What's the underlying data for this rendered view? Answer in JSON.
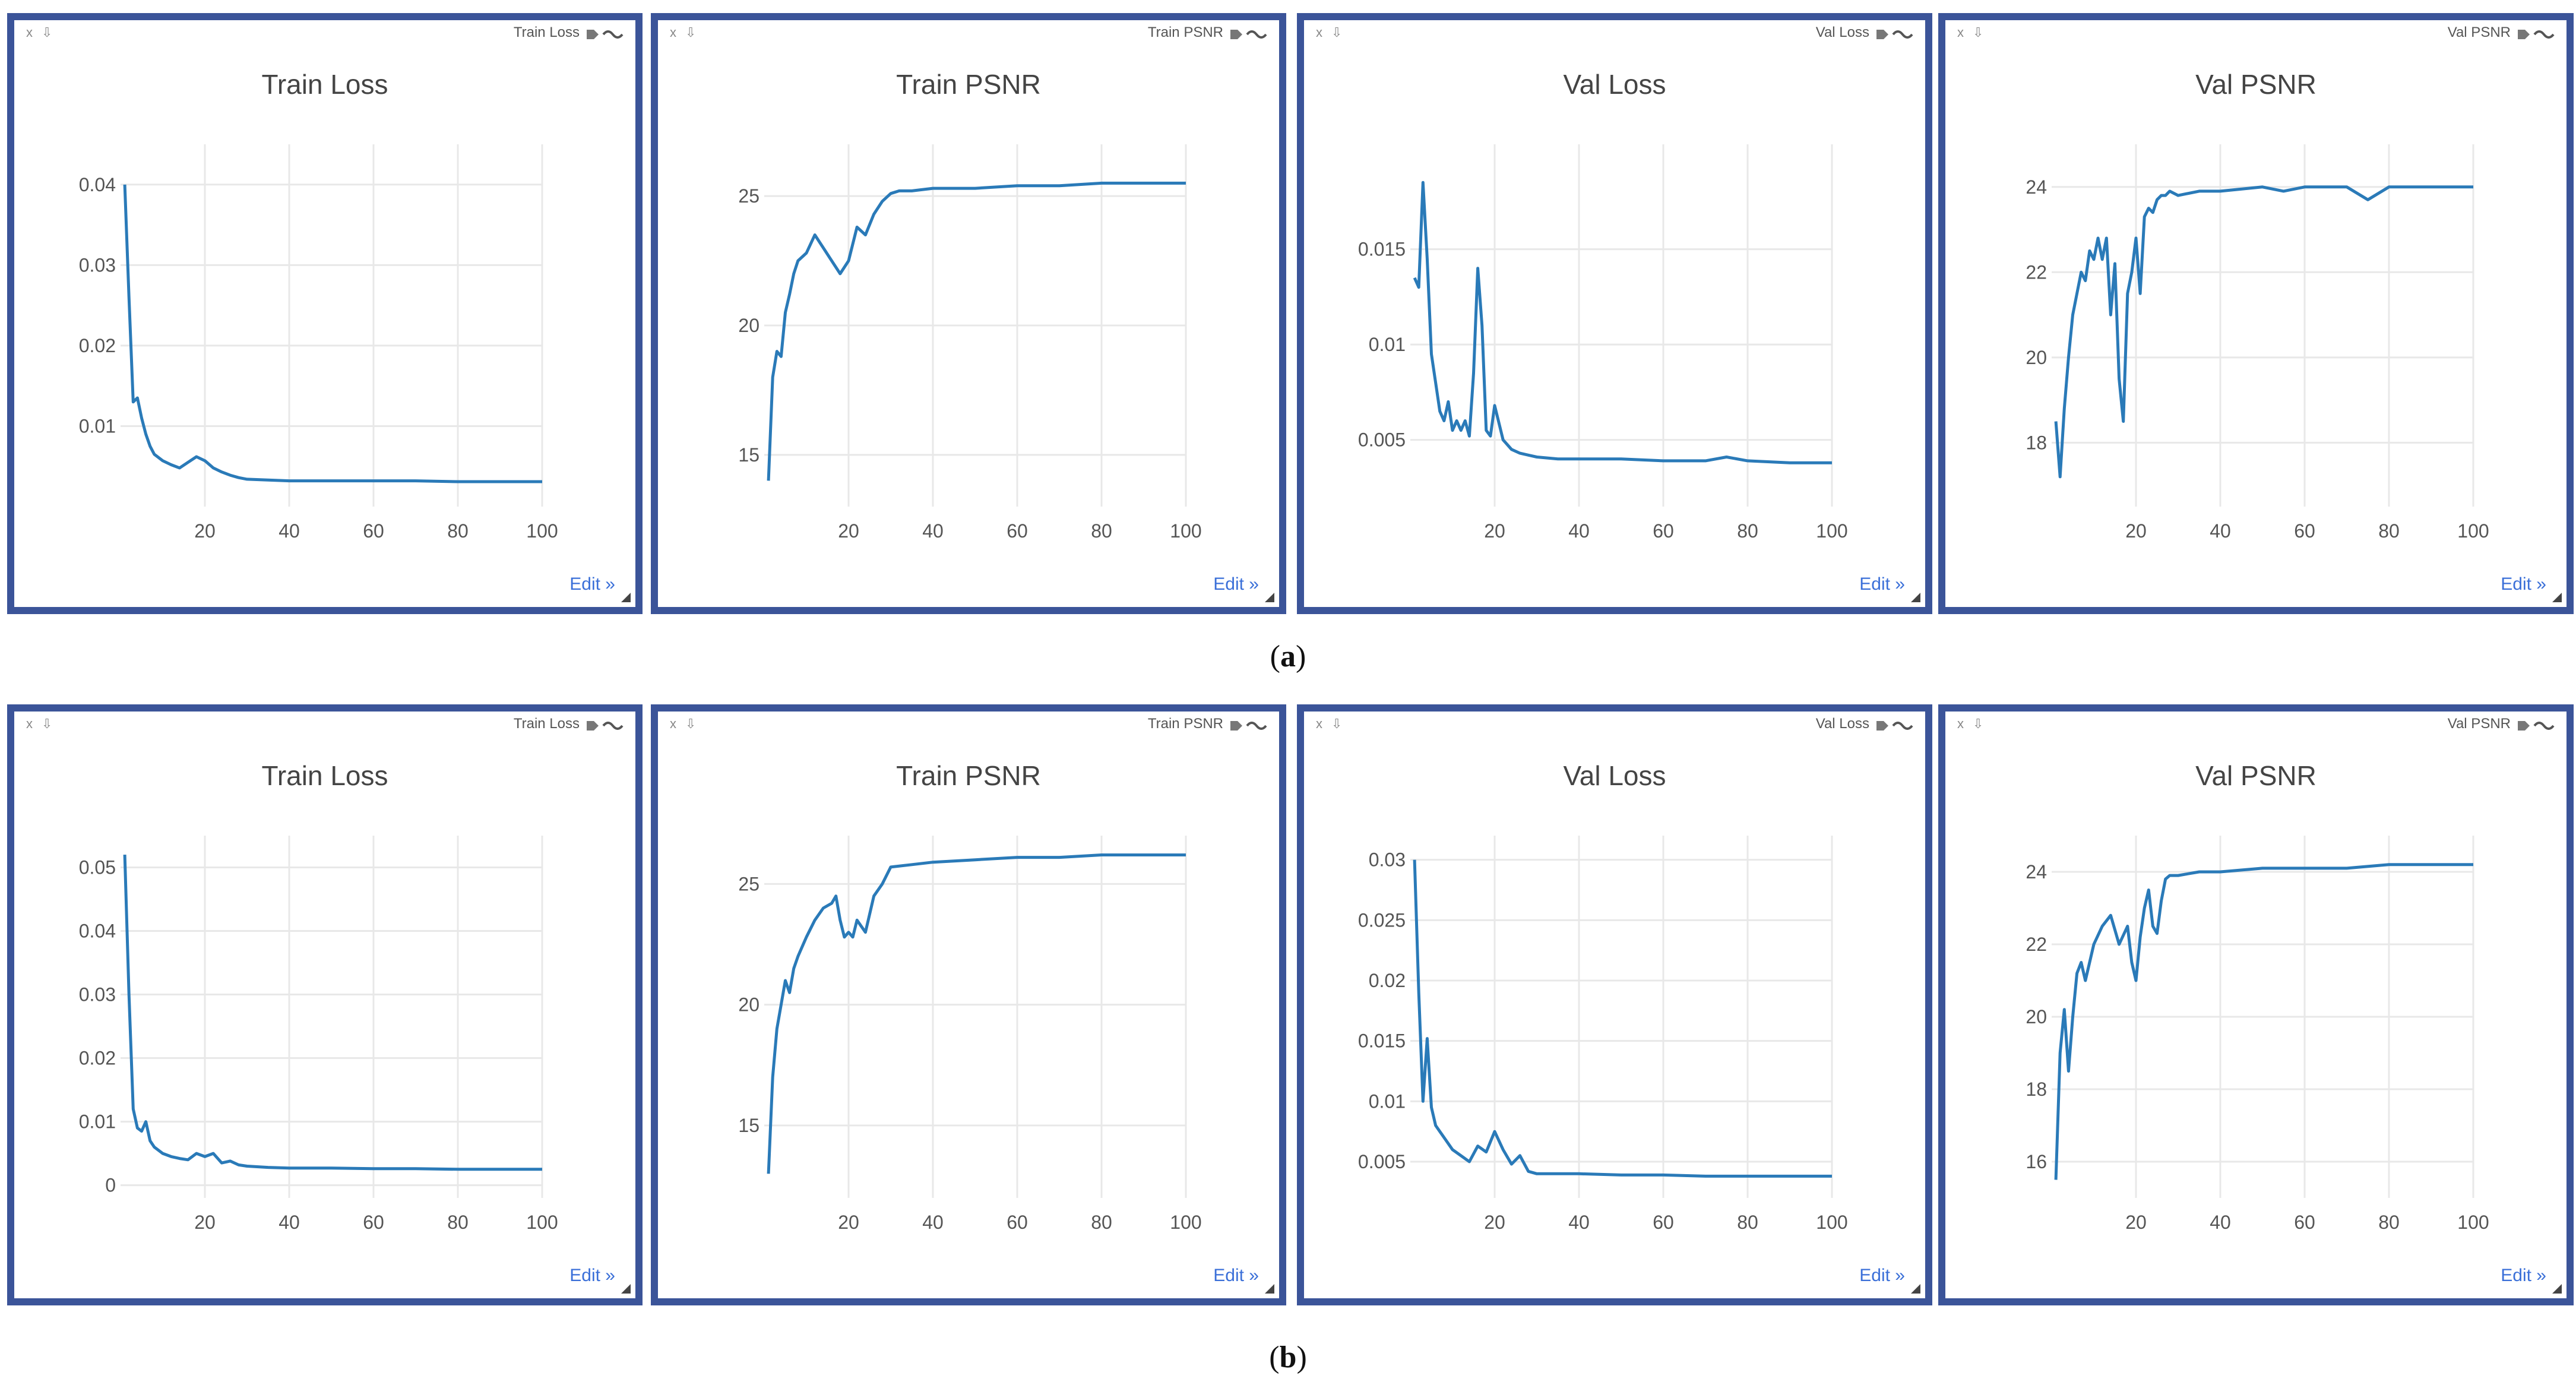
{
  "figure_labels": [
    "(a)",
    "(b)"
  ],
  "panel_common": {
    "edit_label": "Edit »",
    "corner_x": "x",
    "corner_pin": "⇩"
  },
  "colors": {
    "frame": "#3b5499",
    "line": "#2a7ab8",
    "grid": "#e8e8e8",
    "tick": "#555555",
    "title": "#444444",
    "link": "#3a6fd8"
  },
  "chart_data": [
    {
      "type": "line",
      "row": 0,
      "title": "Train Loss",
      "header": "Train Loss",
      "xlim": [
        0,
        100
      ],
      "ylim": [
        0,
        0.045
      ],
      "xticks": [
        20,
        40,
        60,
        80,
        100
      ],
      "yticks": [
        0.01,
        0.02,
        0.03,
        0.04
      ],
      "ytick_labels": [
        "0.01",
        "0.02",
        "0.03",
        "0.04"
      ],
      "x": [
        1,
        2,
        3,
        4,
        5,
        6,
        7,
        8,
        10,
        12,
        14,
        16,
        18,
        20,
        22,
        24,
        26,
        28,
        30,
        35,
        40,
        50,
        60,
        70,
        80,
        90,
        100
      ],
      "y": [
        0.04,
        0.026,
        0.013,
        0.0135,
        0.011,
        0.009,
        0.0075,
        0.0065,
        0.0057,
        0.0052,
        0.0048,
        0.0055,
        0.0062,
        0.0057,
        0.0048,
        0.0043,
        0.0039,
        0.0036,
        0.0034,
        0.0033,
        0.0032,
        0.0032,
        0.0032,
        0.0032,
        0.0031,
        0.0031,
        0.0031
      ]
    },
    {
      "type": "line",
      "row": 0,
      "title": "Train PSNR",
      "header": "Train PSNR",
      "xlim": [
        0,
        100
      ],
      "ylim": [
        13,
        27
      ],
      "xticks": [
        20,
        40,
        60,
        80,
        100
      ],
      "yticks": [
        15,
        20,
        25
      ],
      "ytick_labels": [
        "15",
        "20",
        "25"
      ],
      "x": [
        1,
        2,
        3,
        4,
        5,
        6,
        7,
        8,
        10,
        12,
        14,
        16,
        18,
        20,
        22,
        24,
        26,
        28,
        30,
        32,
        35,
        40,
        50,
        60,
        70,
        80,
        90,
        100
      ],
      "y": [
        14,
        18,
        19,
        18.8,
        20.5,
        21.2,
        22,
        22.5,
        22.8,
        23.5,
        23,
        22.5,
        22,
        22.5,
        23.8,
        23.5,
        24.3,
        24.8,
        25.1,
        25.2,
        25.2,
        25.3,
        25.3,
        25.4,
        25.4,
        25.5,
        25.5,
        25.5
      ]
    },
    {
      "type": "line",
      "row": 0,
      "title": "Val Loss",
      "header": "Val Loss",
      "xlim": [
        0,
        100
      ],
      "ylim": [
        0.0015,
        0.0205
      ],
      "xticks": [
        20,
        40,
        60,
        80,
        100
      ],
      "yticks": [
        0.005,
        0.01,
        0.015
      ],
      "ytick_labels": [
        "0.005",
        "0.01",
        "0.015"
      ],
      "x": [
        1,
        2,
        3,
        4,
        5,
        6,
        7,
        8,
        9,
        10,
        11,
        12,
        13,
        14,
        15,
        16,
        17,
        18,
        19,
        20,
        22,
        24,
        26,
        28,
        30,
        35,
        40,
        50,
        60,
        70,
        75,
        80,
        90,
        100
      ],
      "y": [
        0.0135,
        0.013,
        0.0185,
        0.0145,
        0.0095,
        0.008,
        0.0065,
        0.006,
        0.007,
        0.0055,
        0.006,
        0.0055,
        0.006,
        0.0052,
        0.0085,
        0.014,
        0.011,
        0.0055,
        0.0052,
        0.0068,
        0.005,
        0.0045,
        0.0043,
        0.0042,
        0.0041,
        0.004,
        0.004,
        0.004,
        0.0039,
        0.0039,
        0.0041,
        0.0039,
        0.0038,
        0.0038
      ]
    },
    {
      "type": "line",
      "row": 0,
      "title": "Val PSNR",
      "header": "Val PSNR",
      "xlim": [
        0,
        100
      ],
      "ylim": [
        16.5,
        25
      ],
      "xticks": [
        20,
        40,
        60,
        80,
        100
      ],
      "yticks": [
        18,
        20,
        22,
        24
      ],
      "ytick_labels": [
        "18",
        "20",
        "22",
        "24"
      ],
      "x": [
        1,
        2,
        3,
        4,
        5,
        6,
        7,
        8,
        9,
        10,
        11,
        12,
        13,
        14,
        15,
        16,
        17,
        18,
        19,
        20,
        21,
        22,
        23,
        24,
        25,
        26,
        27,
        28,
        30,
        35,
        40,
        50,
        55,
        60,
        70,
        75,
        80,
        90,
        100
      ],
      "y": [
        18.5,
        17.2,
        18.8,
        20,
        21,
        21.5,
        22,
        21.8,
        22.5,
        22.3,
        22.8,
        22.3,
        22.8,
        21,
        22.2,
        19.5,
        18.5,
        21.5,
        22,
        22.8,
        21.5,
        23.3,
        23.5,
        23.4,
        23.7,
        23.8,
        23.8,
        23.9,
        23.8,
        23.9,
        23.9,
        24,
        23.9,
        24,
        24,
        23.7,
        24,
        24,
        24
      ]
    },
    {
      "type": "line",
      "row": 1,
      "title": "Train Loss",
      "header": "Train Loss",
      "xlim": [
        0,
        100
      ],
      "ylim": [
        -0.002,
        0.055
      ],
      "xticks": [
        20,
        40,
        60,
        80,
        100
      ],
      "yticks": [
        0,
        0.01,
        0.02,
        0.03,
        0.04,
        0.05
      ],
      "ytick_labels": [
        "0",
        "0.01",
        "0.02",
        "0.03",
        "0.04",
        "0.05"
      ],
      "x": [
        1,
        2,
        3,
        4,
        5,
        6,
        7,
        8,
        10,
        12,
        14,
        16,
        18,
        20,
        22,
        24,
        26,
        28,
        30,
        35,
        40,
        50,
        60,
        70,
        80,
        90,
        100
      ],
      "y": [
        0.052,
        0.03,
        0.012,
        0.009,
        0.0085,
        0.01,
        0.007,
        0.006,
        0.005,
        0.0045,
        0.0042,
        0.004,
        0.005,
        0.0045,
        0.005,
        0.0035,
        0.0038,
        0.0032,
        0.003,
        0.0028,
        0.0027,
        0.0027,
        0.0026,
        0.0026,
        0.0025,
        0.0025,
        0.0025
      ]
    },
    {
      "type": "line",
      "row": 1,
      "title": "Train PSNR",
      "header": "Train PSNR",
      "xlim": [
        0,
        100
      ],
      "ylim": [
        12,
        27
      ],
      "xticks": [
        20,
        40,
        60,
        80,
        100
      ],
      "yticks": [
        15,
        20,
        25
      ],
      "ytick_labels": [
        "15",
        "20",
        "25"
      ],
      "x": [
        1,
        2,
        3,
        4,
        5,
        6,
        7,
        8,
        10,
        12,
        14,
        16,
        17,
        18,
        19,
        20,
        21,
        22,
        24,
        26,
        28,
        30,
        35,
        40,
        50,
        60,
        70,
        80,
        90,
        100
      ],
      "y": [
        13,
        17,
        19,
        20,
        21,
        20.5,
        21.5,
        22,
        22.8,
        23.5,
        24,
        24.2,
        24.5,
        23.5,
        22.8,
        23,
        22.8,
        23.5,
        23,
        24.5,
        25,
        25.7,
        25.8,
        25.9,
        26,
        26.1,
        26.1,
        26.2,
        26.2,
        26.2
      ]
    },
    {
      "type": "line",
      "row": 1,
      "title": "Val Loss",
      "header": "Val Loss",
      "xlim": [
        0,
        100
      ],
      "ylim": [
        0.002,
        0.032
      ],
      "xticks": [
        20,
        40,
        60,
        80,
        100
      ],
      "yticks": [
        0.005,
        0.01,
        0.015,
        0.02,
        0.025,
        0.03
      ],
      "ytick_labels": [
        "0.005",
        "0.01",
        "0.015",
        "0.02",
        "0.025",
        "0.03"
      ],
      "x": [
        1,
        2,
        3,
        4,
        5,
        6,
        7,
        8,
        10,
        12,
        14,
        16,
        18,
        20,
        22,
        24,
        26,
        28,
        30,
        35,
        40,
        50,
        60,
        70,
        80,
        90,
        100
      ],
      "y": [
        0.03,
        0.019,
        0.01,
        0.0152,
        0.0095,
        0.008,
        0.0075,
        0.007,
        0.006,
        0.0055,
        0.005,
        0.0063,
        0.0058,
        0.0075,
        0.006,
        0.0048,
        0.0055,
        0.0042,
        0.004,
        0.004,
        0.004,
        0.0039,
        0.0039,
        0.0038,
        0.0038,
        0.0038,
        0.0038
      ]
    },
    {
      "type": "line",
      "row": 1,
      "title": "Val PSNR",
      "header": "Val PSNR",
      "xlim": [
        0,
        100
      ],
      "ylim": [
        15,
        25
      ],
      "xticks": [
        20,
        40,
        60,
        80,
        100
      ],
      "yticks": [
        16,
        18,
        20,
        22,
        24
      ],
      "ytick_labels": [
        "16",
        "18",
        "20",
        "22",
        "24"
      ],
      "x": [
        1,
        2,
        3,
        4,
        5,
        6,
        7,
        8,
        10,
        12,
        14,
        16,
        18,
        19,
        20,
        21,
        22,
        23,
        24,
        25,
        26,
        27,
        28,
        30,
        35,
        40,
        50,
        60,
        70,
        80,
        90,
        100
      ],
      "y": [
        15.5,
        19,
        20.2,
        18.5,
        20,
        21.2,
        21.5,
        21,
        22,
        22.5,
        22.8,
        22,
        22.5,
        21.5,
        21,
        22.2,
        23,
        23.5,
        22.5,
        22.3,
        23.2,
        23.8,
        23.9,
        23.9,
        24,
        24,
        24.1,
        24.1,
        24.1,
        24.2,
        24.2,
        24.2
      ]
    }
  ]
}
